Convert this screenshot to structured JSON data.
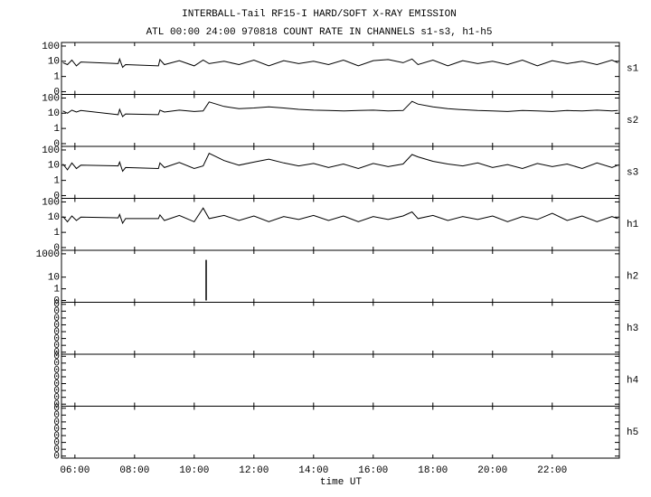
{
  "chart_data": {
    "type": "line",
    "title": "INTERBALL-Tail RF15-I HARD/SOFT X-RAY EMISSION",
    "subtitle": "ATL 00:00 24:00 970818  COUNT RATE IN CHANNELS s1-s3, h1-h5",
    "xlabel": "time UT",
    "xlim": [
      5.55,
      24.25
    ],
    "xticks": [
      {
        "value": 6,
        "label": "06:00"
      },
      {
        "value": 8,
        "label": "08:00"
      },
      {
        "value": 10,
        "label": "10:00"
      },
      {
        "value": 12,
        "label": "12:00"
      },
      {
        "value": 14,
        "label": "14:00"
      },
      {
        "value": 16,
        "label": "16:00"
      },
      {
        "value": 18,
        "label": "18:00"
      },
      {
        "value": 20,
        "label": "20:00"
      },
      {
        "value": 22,
        "label": "22:00"
      }
    ],
    "x": [
      5.6,
      5.75,
      5.9,
      6.05,
      6.2,
      7.45,
      7.5,
      7.6,
      7.7,
      8.8,
      8.85,
      9.0,
      9.5,
      10.0,
      10.3,
      10.5,
      11.0,
      11.5,
      12.0,
      12.5,
      13.0,
      13.5,
      14.0,
      14.5,
      15.0,
      15.5,
      16.0,
      16.5,
      17.0,
      17.3,
      17.5,
      18.0,
      18.5,
      19.0,
      19.5,
      20.0,
      20.5,
      21.0,
      21.5,
      22.0,
      22.5,
      23.0,
      23.5,
      24.0,
      24.2
    ],
    "panels": [
      {
        "name": "s1",
        "log": true,
        "ylim": [
          0.066,
          172
        ],
        "yticks": [
          {
            "value": 0.1,
            "label": "0"
          },
          1,
          10,
          100
        ],
        "series": [
          {
            "color": "#000000",
            "values": [
              8,
              6,
              12,
              5,
              9,
              7,
              14,
              4,
              6,
              5,
              13,
              6,
              11,
              5,
              12,
              7,
              10,
              6,
              12,
              5,
              11,
              7,
              10,
              6,
              12,
              5,
              11,
              13,
              8,
              14,
              6,
              12,
              5,
              11,
              7,
              10,
              6,
              12,
              5,
              11,
              7,
              10,
              6,
              12,
              8
            ]
          }
        ]
      },
      {
        "name": "s2",
        "log": true,
        "ylim": [
          0.066,
          172
        ],
        "yticks": [
          {
            "value": 0.1,
            "label": "0"
          },
          1,
          10,
          100
        ],
        "series": [
          {
            "color": "#000000",
            "values": [
              14,
              10,
              16,
              12,
              15,
              8,
              18,
              6,
              9,
              8,
              16,
              12,
              16,
              13,
              14,
              55,
              28,
              20,
              22,
              26,
              22,
              18,
              16,
              15,
              14,
              15,
              16,
              14,
              15,
              60,
              40,
              26,
              20,
              17,
              15,
              14,
              13,
              15,
              14,
              13,
              15,
              14,
              16,
              14,
              15
            ]
          }
        ]
      },
      {
        "name": "s3",
        "log": true,
        "ylim": [
          0.066,
          172
        ],
        "yticks": [
          {
            "value": 0.1,
            "label": "0"
          },
          1,
          10,
          100
        ],
        "series": [
          {
            "color": "#000000",
            "values": [
              12,
              5,
              14,
              6,
              10,
              9,
              16,
              4,
              7,
              6,
              14,
              7,
              15,
              6,
              9,
              60,
              20,
              10,
              16,
              25,
              14,
              9,
              13,
              7,
              12,
              6,
              13,
              8,
              12,
              50,
              35,
              18,
              12,
              9,
              14,
              7,
              11,
              6,
              13,
              8,
              12,
              6,
              14,
              7,
              10
            ]
          }
        ]
      },
      {
        "name": "h1",
        "log": true,
        "ylim": [
          0.066,
          172
        ],
        "yticks": [
          {
            "value": 0.1,
            "label": "0"
          },
          1,
          10,
          100
        ],
        "series": [
          {
            "color": "#000000",
            "values": [
              11,
              5,
              12,
              6,
              10,
              9,
              15,
              4,
              8,
              8,
              14,
              6,
              13,
              5,
              40,
              8,
              13,
              6,
              12,
              5,
              11,
              7,
              13,
              6,
              12,
              5,
              11,
              7,
              12,
              22,
              8,
              13,
              6,
              11,
              7,
              12,
              5,
              11,
              7,
              18,
              6,
              12,
              5,
              11,
              8
            ]
          }
        ]
      },
      {
        "name": "h2",
        "log": true,
        "ylim": [
          0.07,
          2000
        ],
        "yticks": [
          {
            "value": 0.1,
            "label": "0"
          },
          1,
          10,
          1000
        ],
        "series": [
          {
            "color": "#000000",
            "x": [
              10.4,
              10.4
            ],
            "values": [
              0.1,
              300
            ]
          }
        ]
      },
      {
        "name": "h3",
        "log": false,
        "ylim": [
          -0.3,
          7.3
        ],
        "yticks": [
          0,
          {
            "value": 1,
            "label": "0"
          },
          {
            "value": 2,
            "label": "0"
          },
          {
            "value": 3,
            "label": "0"
          },
          {
            "value": 4,
            "label": "0"
          },
          {
            "value": 5,
            "label": "0"
          },
          {
            "value": 6,
            "label": "0"
          },
          {
            "value": 7,
            "label": "0"
          }
        ],
        "series": []
      },
      {
        "name": "h4",
        "log": false,
        "ylim": [
          -0.3,
          7.3
        ],
        "yticks": [
          0,
          {
            "value": 1,
            "label": "0"
          },
          {
            "value": 2,
            "label": "0"
          },
          {
            "value": 3,
            "label": "0"
          },
          {
            "value": 4,
            "label": "0"
          },
          {
            "value": 5,
            "label": "0"
          },
          {
            "value": 6,
            "label": "0"
          },
          {
            "value": 7,
            "label": "0"
          }
        ],
        "series": []
      },
      {
        "name": "h5",
        "log": false,
        "ylim": [
          -0.3,
          7.3
        ],
        "yticks": [
          0,
          {
            "value": 1,
            "label": "0"
          },
          {
            "value": 2,
            "label": "0"
          },
          {
            "value": 3,
            "label": "0"
          },
          {
            "value": 4,
            "label": "0"
          },
          {
            "value": 5,
            "label": "0"
          },
          {
            "value": 6,
            "label": "0"
          },
          {
            "value": 7,
            "label": "0"
          }
        ],
        "series": []
      }
    ]
  }
}
